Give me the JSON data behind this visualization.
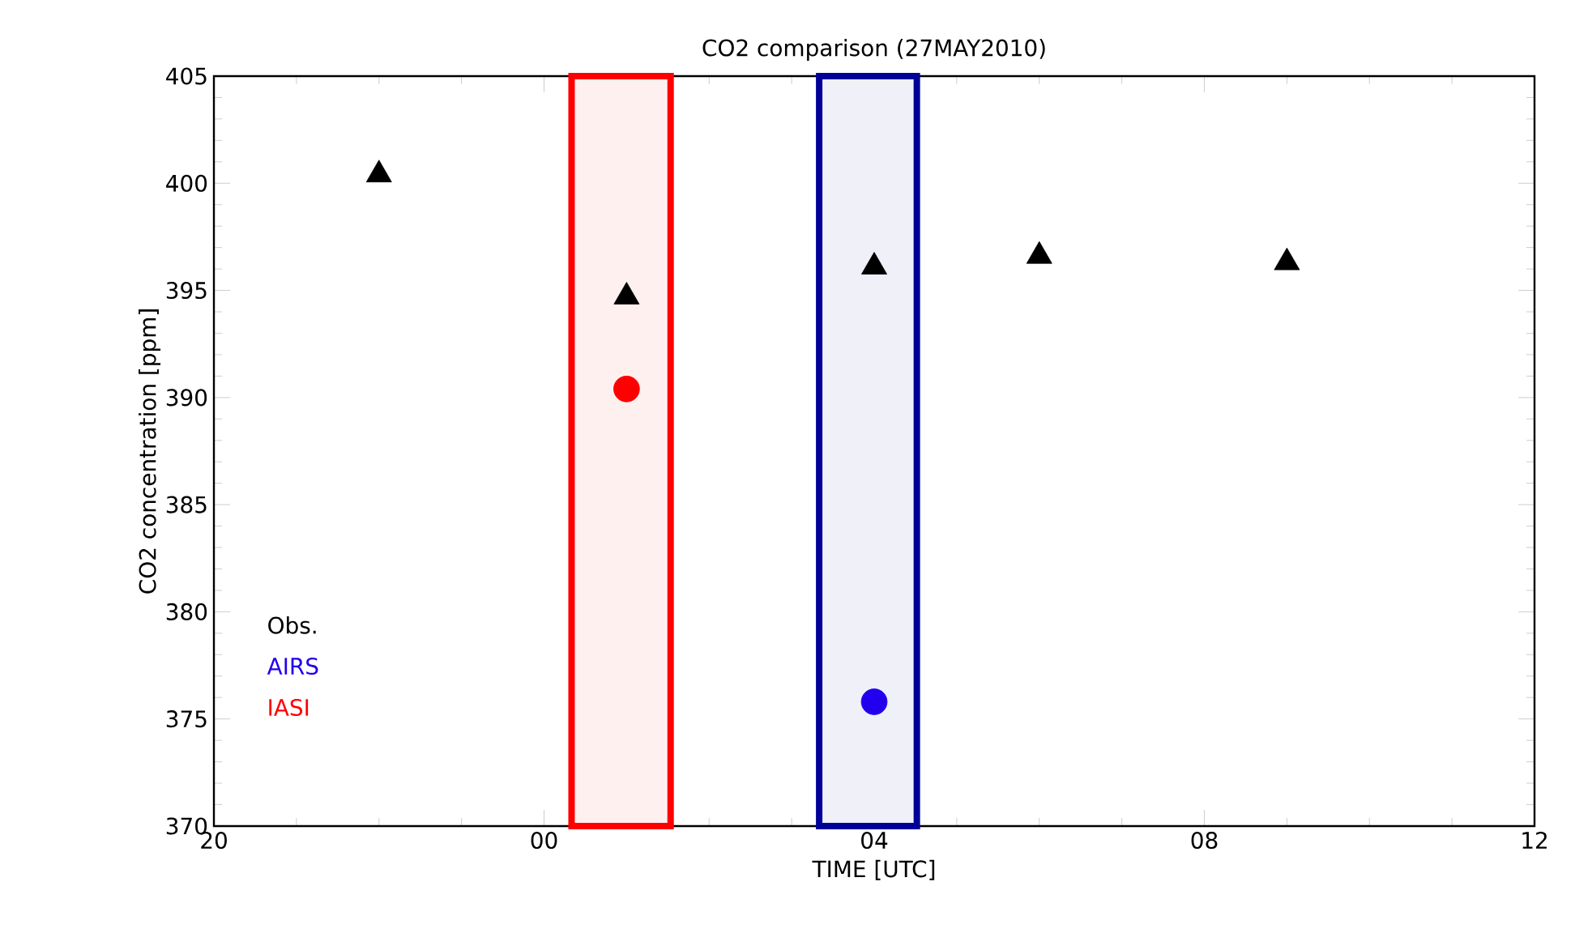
{
  "chart_data": {
    "type": "scatter",
    "title": "CO2 comparison (27MAY2010)",
    "xlabel": "TIME [UTC]",
    "ylabel": "CO2 concentration [ppm]",
    "series": [
      {
        "name": "Obs.",
        "color": "#000000",
        "marker": "triangle",
        "x": [
          "2010-05-26T22:00",
          "2010-05-27T01:00",
          "2010-05-27T04:00",
          "2010-05-27T06:00",
          "2010-05-27T09:00"
        ],
        "values": [
          400.4,
          394.7,
          396.1,
          396.6,
          396.3
        ]
      },
      {
        "name": "AIRS",
        "color": "#2200ee",
        "marker": "circle",
        "x": [
          "2010-05-27T04:00"
        ],
        "values": [
          375.8
        ]
      },
      {
        "name": "IASI",
        "color": "#ff0000",
        "marker": "circle",
        "x": [
          "2010-05-27T01:00"
        ],
        "values": [
          390.4
        ]
      }
    ],
    "bands": [
      {
        "axis": "x",
        "from": "2010-05-27T00:20",
        "to": "2010-05-27T01:32",
        "color": "#ff0000"
      },
      {
        "axis": "x",
        "from": "2010-05-27T03:20",
        "to": "2010-05-27T04:31",
        "color": "#000099"
      }
    ],
    "xlim": [
      "2010-05-26T20:00",
      "2010-05-27T12:00"
    ],
    "xticks": [
      {
        "value": "2010-05-26T20:00",
        "label": "20"
      },
      {
        "value": "2010-05-27T00:00",
        "label": "00"
      },
      {
        "value": "2010-05-27T04:00",
        "label": "04"
      },
      {
        "value": "2010-05-27T08:00",
        "label": "08"
      },
      {
        "value": "2010-05-27T12:00",
        "label": "12"
      }
    ],
    "ylim": [
      370,
      405
    ],
    "yticks": [
      370,
      375,
      380,
      385,
      390,
      395,
      400,
      405
    ],
    "legend": "bottom left",
    "grid": false
  }
}
